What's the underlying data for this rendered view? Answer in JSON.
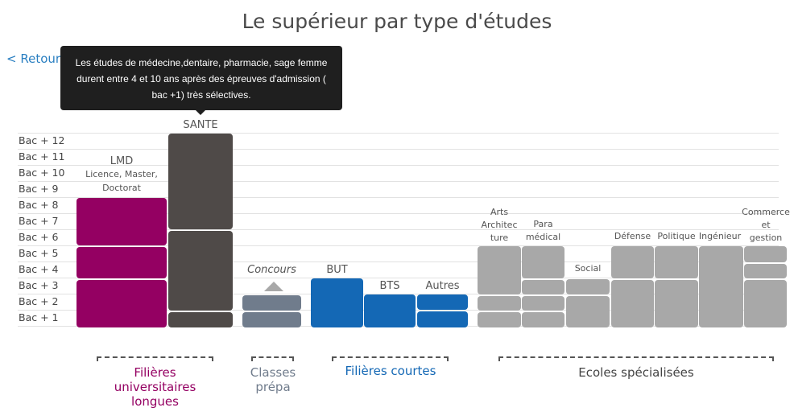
{
  "page": {
    "title": "Le supérieur par type d'études",
    "back_link": "< Retour"
  },
  "tooltip": {
    "text": "Les études de médecine,dentaire, pharmacie, sage femme durent entre 4 et 10 ans après des épreuves d'admission ( bac +1) très sélectives."
  },
  "levels": [
    "Bac + 12",
    "Bac + 11",
    "Bac + 10",
    "Bac + 9",
    "Bac + 8",
    "Bac + 7",
    "Bac + 6",
    "Bac + 5",
    "Bac + 4",
    "Bac + 3",
    "Bac + 2",
    "Bac + 1"
  ],
  "columns": {
    "lmd": {
      "title": "LMD",
      "subtitle": "Licence, Master,",
      "subtitle2": "Doctorat"
    },
    "sante": {
      "title": "SANTE"
    },
    "concours": {
      "title": "Concours"
    },
    "but": {
      "title": "BUT"
    },
    "bts": {
      "title": "BTS"
    },
    "autres": {
      "title": "Autres"
    },
    "arts": {
      "line1": "Arts",
      "line2": "Architec",
      "line3": "ture"
    },
    "paramedical": {
      "line1": "Para",
      "line2": "médical"
    },
    "social": {
      "title": "Social"
    },
    "defense": {
      "title": "Défense"
    },
    "politique": {
      "title": "Politique"
    },
    "ingenieur": {
      "title": "Ingénieur"
    },
    "commerce": {
      "line1": "Commerce",
      "line2": "et",
      "line3": "gestion"
    }
  },
  "groups": {
    "universitaires": {
      "line1": "Filières",
      "line2": "universitaires",
      "line3": "longues"
    },
    "prepa": {
      "line1": "Classes",
      "line2": "prépa"
    },
    "courtes": {
      "label": "Filières courtes"
    },
    "ecoles": {
      "label": "Ecoles spécialisées"
    }
  },
  "colors": {
    "magenta": "#940062",
    "dark": "#4f4a48",
    "slate": "#707c8c",
    "blue": "#1468b5",
    "gray": "#a8a8a8",
    "link": "#2a7fc1"
  }
}
